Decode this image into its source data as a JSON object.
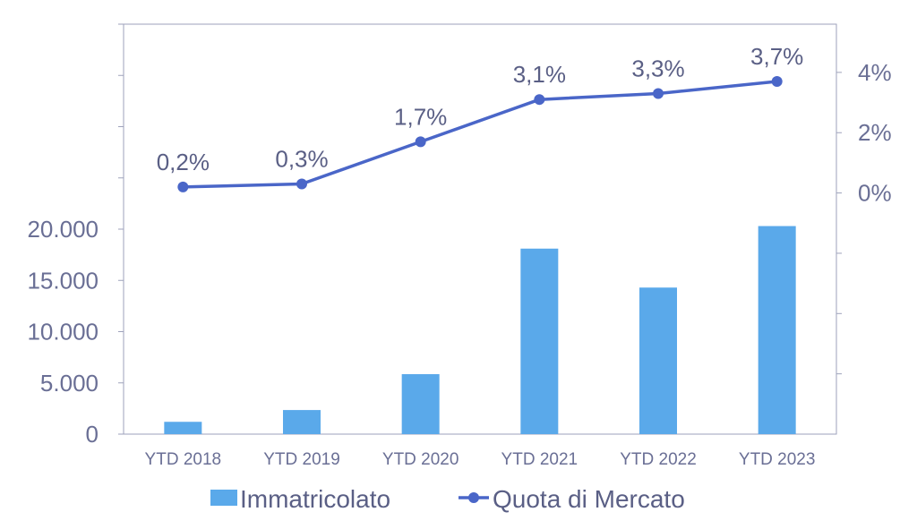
{
  "chart_data": {
    "type": "bar",
    "title": "",
    "categories": [
      "YTD 2018",
      "YTD 2019",
      "YTD 2020",
      "YTD 2021",
      "YTD 2022",
      "YTD 2023"
    ],
    "series": [
      {
        "name": "Immatricolato",
        "type": "bar",
        "axis": "left",
        "color": "#5aa9ea",
        "values": [
          1200,
          2350,
          5850,
          18100,
          14300,
          20300
        ]
      },
      {
        "name": "Quota di Mercato",
        "type": "line",
        "axis": "right",
        "color": "#4a66c8",
        "values": [
          0.2,
          0.3,
          1.7,
          3.1,
          3.3,
          3.7
        ],
        "data_labels": [
          "0,2%",
          "0,3%",
          "1,7%",
          "3,1%",
          "3,3%",
          "3,7%"
        ]
      }
    ],
    "y_left": {
      "range": [
        0,
        40000
      ],
      "ticks": [
        0,
        5000,
        10000,
        15000,
        20000
      ],
      "tick_labels": [
        "0",
        "5.000",
        "10.000",
        "15.000",
        "20.000"
      ]
    },
    "y_right": {
      "range": [
        -8,
        5.6
      ],
      "ticks": [
        0,
        2,
        4
      ],
      "tick_labels": [
        "0%",
        "2%",
        "4%"
      ]
    },
    "legend": {
      "position": "bottom",
      "entries": [
        "Immatricolato",
        "Quota di Mercato"
      ]
    },
    "grid": false
  }
}
